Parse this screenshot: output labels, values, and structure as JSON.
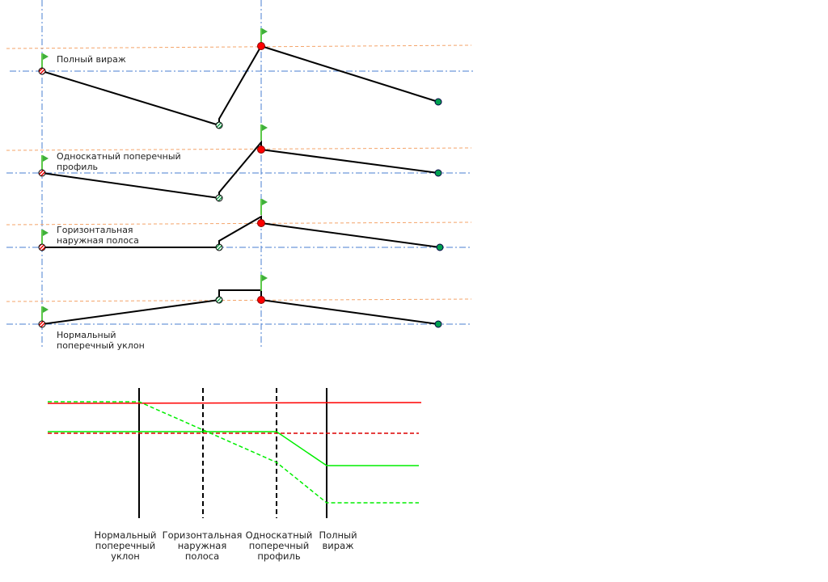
{
  "profiles": [
    {
      "label_lines": [
        "Полный вираж"
      ]
    },
    {
      "label_lines": [
        "Односкатный поперечный",
        "профиль"
      ]
    },
    {
      "label_lines": [
        "Горизонтальная",
        "наружная полоса"
      ]
    },
    {
      "label_lines": [
        "Нормальный",
        "поперечный уклон"
      ]
    }
  ],
  "transition_labels": [
    {
      "lines": [
        "Нормальный",
        "поперечный",
        "уклон"
      ]
    },
    {
      "lines": [
        "Горизонтальная",
        "наружная",
        "полоса"
      ]
    },
    {
      "lines": [
        "Односкатный",
        "поперечный",
        "профиль"
      ]
    },
    {
      "lines": [
        "Полный",
        "вираж"
      ]
    }
  ],
  "colors": {
    "centerline": "#4a7fd0",
    "offset_line": "#f4a46a",
    "pivot_point": "#ff0000",
    "edge_point": "#00a050",
    "flag": "#5cc84a",
    "left_edge_series": "#ff0000",
    "right_edge_series": "#00ff00"
  },
  "icons": [
    "flag-icon",
    "hatched-point-icon",
    "solid-point-icon"
  ]
}
